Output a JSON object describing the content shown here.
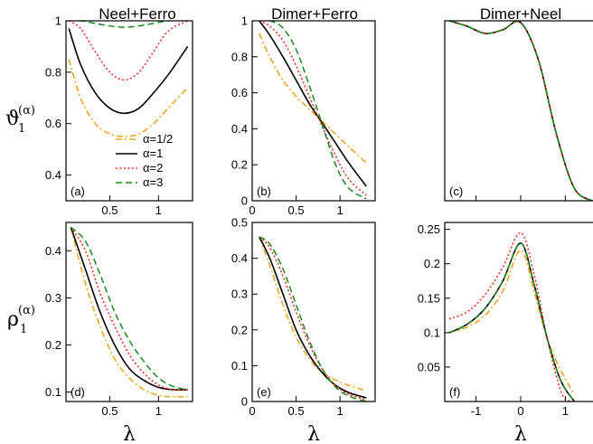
{
  "y_labels": [
    {
      "main": "ϑ",
      "sub": "1",
      "sup": "(α)"
    },
    {
      "main": "ρ",
      "sub": "1",
      "sup": "(α)"
    }
  ],
  "legend": {
    "entries": [
      "α=1/2",
      "α=1",
      "α=2",
      "α=3"
    ]
  },
  "series_styles": [
    {
      "color": "#e8a317",
      "dash": "dashdot"
    },
    {
      "color": "#000000",
      "dash": "solid"
    },
    {
      "color": "#e8281e",
      "dash": "dotted"
    },
    {
      "color": "#1a8a1a",
      "dash": "dashed"
    }
  ],
  "chart_data": [
    {
      "type": "line",
      "panel": "a",
      "title": "Neel+Ferro",
      "xlabel": "",
      "xlim": [
        0.05,
        1.35
      ],
      "ylim": [
        0.3,
        1.0
      ],
      "xticks": [
        {
          "v": 0.5,
          "label": "0.5"
        },
        {
          "v": 1,
          "label": "1"
        }
      ],
      "yticks": [
        {
          "v": 0.4,
          "label": "0.4"
        },
        {
          "v": 0.6,
          "label": "0.6"
        },
        {
          "v": 0.8,
          "label": "0.8"
        },
        {
          "v": 1,
          "label": "1"
        }
      ],
      "series": [
        {
          "x": [
            0.08,
            0.2,
            0.35,
            0.5,
            0.65,
            0.8,
            0.95,
            1.1,
            1.3
          ],
          "y": [
            0.85,
            0.7,
            0.6,
            0.56,
            0.55,
            0.56,
            0.6,
            0.66,
            0.74
          ]
        },
        {
          "x": [
            0.08,
            0.2,
            0.35,
            0.5,
            0.65,
            0.8,
            0.95,
            1.1,
            1.3
          ],
          "y": [
            0.97,
            0.83,
            0.72,
            0.66,
            0.64,
            0.66,
            0.72,
            0.79,
            0.9
          ]
        },
        {
          "x": [
            0.08,
            0.2,
            0.35,
            0.5,
            0.65,
            0.8,
            0.95,
            1.1,
            1.3
          ],
          "y": [
            1.0,
            0.97,
            0.88,
            0.8,
            0.77,
            0.8,
            0.88,
            0.96,
            1.0
          ]
        },
        {
          "x": [
            0.08,
            0.2,
            0.35,
            0.5,
            0.65,
            0.8,
            0.95,
            1.1,
            1.3
          ],
          "y": [
            1.0,
            1.0,
            0.99,
            0.98,
            0.975,
            0.98,
            0.99,
            1.0,
            1.0
          ]
        }
      ]
    },
    {
      "type": "line",
      "panel": "b",
      "title": "Dimer+Ferro",
      "xlabel": "",
      "xlim": [
        0.0,
        1.4
      ],
      "ylim": [
        0.0,
        1.0
      ],
      "xticks": [
        {
          "v": 0,
          "label": "0"
        },
        {
          "v": 0.5,
          "label": "0.5"
        },
        {
          "v": 1,
          "label": "1"
        }
      ],
      "yticks": [
        {
          "v": 0,
          "label": "0"
        },
        {
          "v": 0.2,
          "label": "0.2"
        },
        {
          "v": 0.4,
          "label": "0.4"
        },
        {
          "v": 0.6,
          "label": "0.6"
        },
        {
          "v": 0.8,
          "label": "0.8"
        },
        {
          "v": 1,
          "label": "1"
        }
      ],
      "series": [
        {
          "x": [
            0.08,
            0.2,
            0.35,
            0.5,
            0.65,
            0.8,
            0.95,
            1.1,
            1.3
          ],
          "y": [
            0.93,
            0.8,
            0.67,
            0.58,
            0.51,
            0.44,
            0.37,
            0.3,
            0.21
          ]
        },
        {
          "x": [
            0.08,
            0.2,
            0.35,
            0.5,
            0.65,
            0.8,
            0.95,
            1.1,
            1.3
          ],
          "y": [
            1.0,
            0.92,
            0.8,
            0.67,
            0.54,
            0.43,
            0.32,
            0.21,
            0.08
          ]
        },
        {
          "x": [
            0.08,
            0.2,
            0.35,
            0.5,
            0.65,
            0.8,
            0.95,
            1.1,
            1.3
          ],
          "y": [
            1.0,
            0.97,
            0.89,
            0.75,
            0.58,
            0.41,
            0.25,
            0.12,
            0.03
          ]
        },
        {
          "x": [
            0.08,
            0.2,
            0.35,
            0.5,
            0.65,
            0.8,
            0.95,
            1.1,
            1.3
          ],
          "y": [
            1.0,
            1.0,
            0.96,
            0.84,
            0.64,
            0.42,
            0.2,
            0.07,
            0.01
          ]
        }
      ]
    },
    {
      "type": "line",
      "panel": "c",
      "title": "Dimer+Neel",
      "xlabel": "",
      "xlim": [
        -1.7,
        1.7
      ],
      "ylim": [
        0.0,
        1.0
      ],
      "xticks": [],
      "yticks": [],
      "series": [
        {
          "x": [
            -1.6,
            -1.2,
            -0.8,
            -0.4,
            0.0,
            0.4,
            0.8,
            1.2,
            1.6
          ],
          "y": [
            1.0,
            0.97,
            0.93,
            0.95,
            0.99,
            0.78,
            0.37,
            0.07,
            0.0
          ]
        },
        {
          "x": [
            -1.6,
            -1.2,
            -0.8,
            -0.4,
            0.0,
            0.4,
            0.8,
            1.2,
            1.6
          ],
          "y": [
            1.0,
            0.97,
            0.93,
            0.95,
            0.99,
            0.78,
            0.37,
            0.07,
            0.0
          ]
        },
        {
          "x": [
            -1.6,
            -1.2,
            -0.8,
            -0.4,
            0.0,
            0.4,
            0.8,
            1.2,
            1.6
          ],
          "y": [
            1.0,
            0.97,
            0.93,
            0.95,
            0.99,
            0.78,
            0.37,
            0.07,
            0.0
          ]
        },
        {
          "x": [
            -1.6,
            -1.2,
            -0.8,
            -0.4,
            0.0,
            0.4,
            0.8,
            1.2,
            1.6
          ],
          "y": [
            1.0,
            0.97,
            0.93,
            0.95,
            0.99,
            0.78,
            0.37,
            0.07,
            0.0
          ]
        }
      ]
    },
    {
      "type": "line",
      "panel": "d",
      "title": "",
      "xlabel": "λ",
      "xlim": [
        0.05,
        1.35
      ],
      "ylim": [
        0.08,
        0.46
      ],
      "xticks": [
        {
          "v": 0.5,
          "label": "0.5"
        },
        {
          "v": 1,
          "label": "1"
        }
      ],
      "yticks": [
        {
          "v": 0.1,
          "label": "0.1"
        },
        {
          "v": 0.2,
          "label": "0.2"
        },
        {
          "v": 0.3,
          "label": "0.3"
        },
        {
          "v": 0.4,
          "label": "0.4"
        }
      ],
      "series": [
        {
          "x": [
            0.1,
            0.25,
            0.4,
            0.55,
            0.7,
            0.85,
            1.0,
            1.15,
            1.3
          ],
          "y": [
            0.45,
            0.33,
            0.24,
            0.17,
            0.13,
            0.105,
            0.093,
            0.09,
            0.09
          ]
        },
        {
          "x": [
            0.1,
            0.25,
            0.4,
            0.55,
            0.7,
            0.85,
            1.0,
            1.15,
            1.3
          ],
          "y": [
            0.45,
            0.36,
            0.27,
            0.2,
            0.15,
            0.125,
            0.11,
            0.105,
            0.105
          ]
        },
        {
          "x": [
            0.1,
            0.25,
            0.4,
            0.55,
            0.7,
            0.85,
            1.0,
            1.15,
            1.3
          ],
          "y": [
            0.45,
            0.4,
            0.31,
            0.24,
            0.18,
            0.14,
            0.115,
            0.105,
            0.105
          ]
        },
        {
          "x": [
            0.1,
            0.25,
            0.4,
            0.55,
            0.7,
            0.85,
            1.0,
            1.15,
            1.3
          ],
          "y": [
            0.45,
            0.42,
            0.35,
            0.27,
            0.21,
            0.165,
            0.13,
            0.112,
            0.105
          ]
        }
      ]
    },
    {
      "type": "line",
      "panel": "e",
      "title": "",
      "xlabel": "λ",
      "xlim": [
        0.0,
        1.4
      ],
      "ylim": [
        0.0,
        0.5
      ],
      "xticks": [
        {
          "v": 0,
          "label": "0"
        },
        {
          "v": 0.5,
          "label": "0.5"
        },
        {
          "v": 1,
          "label": "1"
        }
      ],
      "yticks": [
        {
          "v": 0,
          "label": "0"
        },
        {
          "v": 0.1,
          "label": "0.1"
        },
        {
          "v": 0.2,
          "label": "0.2"
        },
        {
          "v": 0.3,
          "label": "0.3"
        },
        {
          "v": 0.4,
          "label": "0.4"
        },
        {
          "v": 0.5,
          "label": "0.5"
        }
      ],
      "series": [
        {
          "x": [
            0.08,
            0.2,
            0.35,
            0.5,
            0.65,
            0.8,
            0.95,
            1.1,
            1.3
          ],
          "y": [
            0.46,
            0.38,
            0.27,
            0.18,
            0.12,
            0.08,
            0.06,
            0.045,
            0.03
          ]
        },
        {
          "x": [
            0.08,
            0.2,
            0.35,
            0.5,
            0.65,
            0.8,
            0.95,
            1.1,
            1.3
          ],
          "y": [
            0.46,
            0.4,
            0.3,
            0.2,
            0.13,
            0.08,
            0.045,
            0.025,
            0.01
          ]
        },
        {
          "x": [
            0.08,
            0.2,
            0.35,
            0.5,
            0.65,
            0.8,
            0.95,
            1.1,
            1.3
          ],
          "y": [
            0.46,
            0.43,
            0.35,
            0.25,
            0.16,
            0.09,
            0.045,
            0.02,
            0.005
          ]
        },
        {
          "x": [
            0.08,
            0.2,
            0.35,
            0.5,
            0.65,
            0.8,
            0.95,
            1.1,
            1.3
          ],
          "y": [
            0.46,
            0.44,
            0.37,
            0.27,
            0.17,
            0.09,
            0.04,
            0.015,
            0.0
          ]
        }
      ]
    },
    {
      "type": "line",
      "panel": "f",
      "title": "",
      "xlabel": "λ",
      "xlim": [
        -1.7,
        1.7
      ],
      "ylim": [
        0.0,
        0.26
      ],
      "xticks": [
        {
          "v": -1,
          "label": "-1"
        },
        {
          "v": 0,
          "label": "0"
        },
        {
          "v": 1,
          "label": "1"
        }
      ],
      "yticks": [
        {
          "v": 0.05,
          "label": "0.05"
        },
        {
          "v": 0.1,
          "label": "0.1"
        },
        {
          "v": 0.15,
          "label": "0.15"
        },
        {
          "v": 0.2,
          "label": "0.2"
        },
        {
          "v": 0.25,
          "label": "0.25"
        }
      ],
      "series": [
        {
          "x": [
            -1.6,
            -1.2,
            -0.8,
            -0.4,
            0.0,
            0.3,
            0.6,
            0.9,
            1.2
          ],
          "y": [
            0.1,
            0.108,
            0.125,
            0.16,
            0.22,
            0.16,
            0.09,
            0.045,
            0.01
          ]
        },
        {
          "x": [
            -1.6,
            -1.2,
            -0.8,
            -0.4,
            0.0,
            0.3,
            0.6,
            0.9,
            1.2
          ],
          "y": [
            0.1,
            0.112,
            0.135,
            0.175,
            0.23,
            0.17,
            0.09,
            0.03,
            0.0
          ]
        },
        {
          "x": [
            -1.6,
            -1.2,
            -0.8,
            -0.4,
            0.0,
            0.3,
            0.6,
            0.9,
            1.1
          ],
          "y": [
            0.12,
            0.13,
            0.155,
            0.195,
            0.245,
            0.185,
            0.09,
            0.015,
            0.0
          ]
        },
        {
          "x": [
            -1.6,
            -1.2,
            -0.8,
            -0.4,
            0.0,
            0.3,
            0.6,
            0.9,
            1.2
          ],
          "y": [
            0.1,
            0.112,
            0.135,
            0.175,
            0.23,
            0.17,
            0.09,
            0.03,
            0.0
          ]
        }
      ]
    }
  ]
}
